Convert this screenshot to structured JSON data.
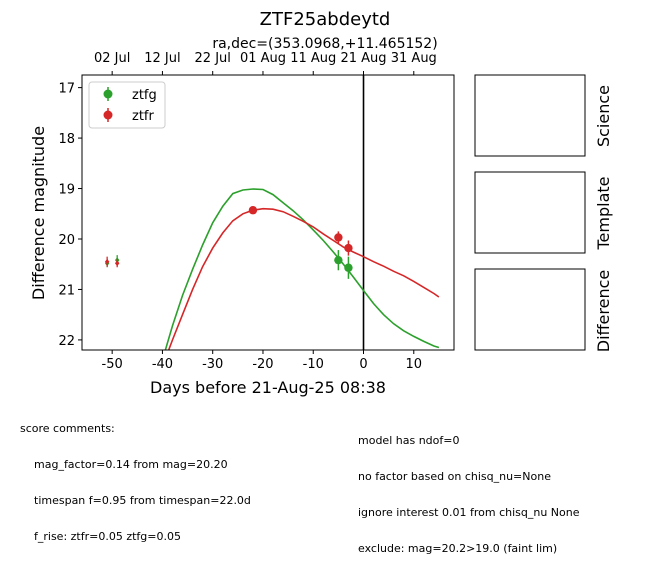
{
  "chart_data": {
    "type": "scatter",
    "title": "ZTF25abdeytd",
    "subtitle": "ra,dec=(353.0968,+11.465152)",
    "xlabel": "Days before 21-Aug-25 08:38",
    "ylabel": "Difference magnitude",
    "xlim": [
      -56,
      18
    ],
    "ylim": [
      22.2,
      16.75
    ],
    "y_inverted": true,
    "x_ticks": [
      -50,
      -40,
      -30,
      -20,
      -10,
      0,
      10
    ],
    "y_ticks": [
      17,
      18,
      19,
      20,
      21,
      22
    ],
    "top_axis_ticks": [
      {
        "label": "02 Jul",
        "x": -50
      },
      {
        "label": "12 Jul",
        "x": -40
      },
      {
        "label": "22 Jul",
        "x": -30
      },
      {
        "label": "01 Aug",
        "x": -20
      },
      {
        "label": "11 Aug",
        "x": -10
      },
      {
        "label": "21 Aug",
        "x": 0
      },
      {
        "label": "31 Aug",
        "x": 10
      }
    ],
    "reference_line_x": 0,
    "legend_position": "upper-left",
    "series": [
      {
        "name": "ztfg",
        "color": "#2ca02c",
        "detections": [
          {
            "x": -5,
            "y": 20.42,
            "yerr": 0.2
          },
          {
            "x": -3,
            "y": 20.57,
            "yerr": 0.22
          }
        ],
        "upper_limits": [
          {
            "x": -51,
            "y": 20.48,
            "yerr": 0.08
          },
          {
            "x": -49,
            "y": 20.42,
            "yerr": 0.1
          }
        ],
        "model": [
          [
            -40,
            22.4
          ],
          [
            -38,
            21.72
          ],
          [
            -36,
            21.12
          ],
          [
            -34,
            20.6
          ],
          [
            -32,
            20.12
          ],
          [
            -30,
            19.68
          ],
          [
            -28,
            19.35
          ],
          [
            -26,
            19.1
          ],
          [
            -24,
            19.03
          ],
          [
            -22,
            19.01
          ],
          [
            -20,
            19.02
          ],
          [
            -18,
            19.12
          ],
          [
            -16,
            19.28
          ],
          [
            -14,
            19.44
          ],
          [
            -12,
            19.62
          ],
          [
            -10,
            19.82
          ],
          [
            -8,
            20.03
          ],
          [
            -6,
            20.26
          ],
          [
            -4,
            20.5
          ],
          [
            -2,
            20.76
          ],
          [
            0,
            21.02
          ],
          [
            2,
            21.28
          ],
          [
            4,
            21.5
          ],
          [
            6,
            21.68
          ],
          [
            8,
            21.82
          ],
          [
            10,
            21.93
          ],
          [
            12,
            22.03
          ],
          [
            14,
            22.12
          ],
          [
            15,
            22.15
          ]
        ]
      },
      {
        "name": "ztfr",
        "color": "#d62728",
        "detections": [
          {
            "x": -22,
            "y": 19.43,
            "yerr": 0.07
          },
          {
            "x": -5,
            "y": 19.97,
            "yerr": 0.12
          },
          {
            "x": -3,
            "y": 20.18,
            "yerr": 0.15
          }
        ],
        "upper_limits": [
          {
            "x": -51,
            "y": 20.45,
            "yerr": 0.1
          },
          {
            "x": -49,
            "y": 20.48,
            "yerr": 0.08
          }
        ],
        "model": [
          [
            -39.5,
            22.4
          ],
          [
            -38,
            22.0
          ],
          [
            -36,
            21.5
          ],
          [
            -34,
            21.0
          ],
          [
            -32,
            20.55
          ],
          [
            -30,
            20.18
          ],
          [
            -28,
            19.88
          ],
          [
            -26,
            19.64
          ],
          [
            -24,
            19.5
          ],
          [
            -22,
            19.43
          ],
          [
            -20,
            19.4
          ],
          [
            -18,
            19.41
          ],
          [
            -16,
            19.46
          ],
          [
            -14,
            19.55
          ],
          [
            -12,
            19.65
          ],
          [
            -10,
            19.76
          ],
          [
            -8,
            19.9
          ],
          [
            -6,
            20.03
          ],
          [
            -4,
            20.16
          ],
          [
            -2,
            20.26
          ],
          [
            0,
            20.35
          ],
          [
            2,
            20.45
          ],
          [
            4,
            20.54
          ],
          [
            6,
            20.64
          ],
          [
            8,
            20.73
          ],
          [
            10,
            20.84
          ],
          [
            12,
            20.96
          ],
          [
            14,
            21.08
          ],
          [
            15,
            21.15
          ]
        ]
      }
    ],
    "side_panels": [
      "Science",
      "Template",
      "Difference"
    ]
  },
  "comments_left": {
    "heading": "score comments:",
    "lines": [
      "mag_factor=0.14 from mag=20.20",
      "timespan f=0.95 from timespan=22.0d",
      "f_rise: ztfr=0.05 ztfg=0.05"
    ]
  },
  "comments_right": {
    "lines": [
      "model has ndof=0",
      "no factor based on chisq_nu=None",
      "ignore interest 0.01 from chisq_nu None",
      "exclude: mag=20.2>19.0 (faint lim)"
    ]
  }
}
